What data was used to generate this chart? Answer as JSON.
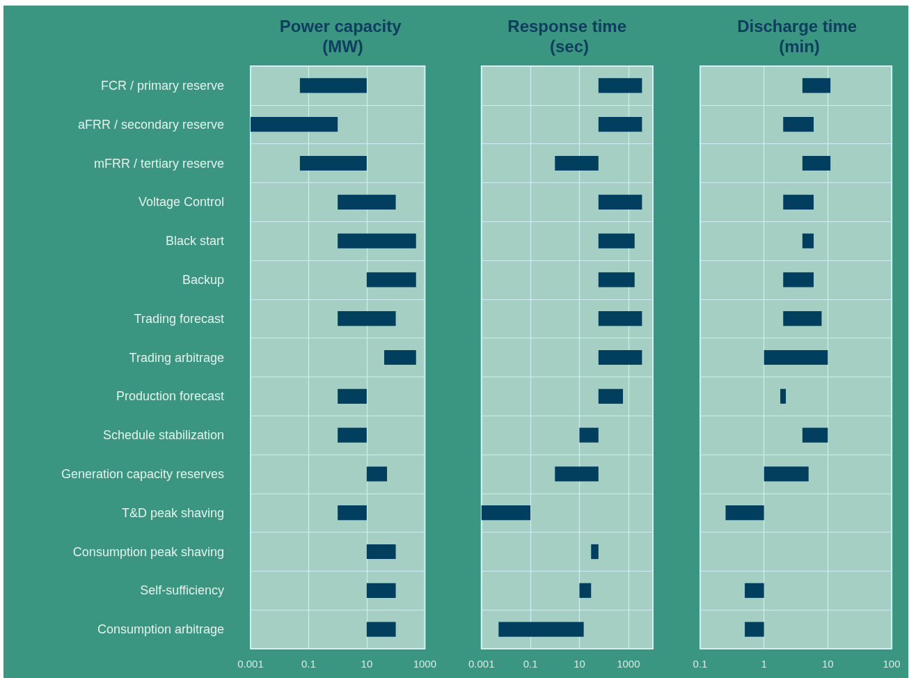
{
  "chart_data": [
    {
      "type": "bar",
      "orientation": "horizontal",
      "title": "Power capacity (MW)",
      "log": "x",
      "grid": true,
      "color": "#023f5e",
      "categories": [
        "FCR / primary reserve",
        "aFRR / secondary reserve",
        "mFRR / tertiary reserve",
        "Voltage Control",
        "Black start",
        "Backup",
        "Trading forecast",
        "Trading arbitrage",
        "Production forecast",
        "Schedule stabilization",
        "Generation capacity reserves",
        "T&D peak shaving",
        "Consumption peak shaving",
        "Self-sufficiency",
        "Consumption arbitrage"
      ],
      "base": [
        0.05,
        0.001,
        0.05,
        1,
        1,
        10,
        1,
        40,
        1,
        1,
        10,
        1,
        10,
        10,
        10
      ],
      "values": [
        9.95,
        0.999,
        9.95,
        99,
        499,
        490,
        99,
        460,
        9,
        9,
        40,
        9,
        90,
        90,
        90
      ],
      "xlim": [
        0.001,
        1000
      ],
      "xticks": [
        0.001,
        0.1,
        10,
        1000
      ]
    },
    {
      "type": "bar",
      "orientation": "horizontal",
      "title": "Response time (sec)",
      "log": "x",
      "grid": true,
      "color": "#023f5e",
      "tick_labels": "x",
      "categories": [
        null,
        null,
        null,
        null,
        null,
        null,
        null,
        null,
        null,
        null,
        null,
        null,
        null,
        null,
        null
      ],
      "base": [
        60,
        60,
        1,
        60,
        60,
        60,
        60,
        60,
        60,
        10,
        1,
        0.001,
        30,
        10,
        0.005
      ],
      "values": [
        3540,
        3540,
        59,
        3540,
        1740,
        1740,
        3540,
        3540,
        540,
        50,
        59,
        0.099,
        30,
        20,
        14.995
      ],
      "xlim": [
        0.001,
        10000
      ],
      "xticks": [
        0.001,
        0.1,
        10,
        1000
      ]
    },
    {
      "type": "bar",
      "orientation": "horizontal",
      "title": "Discharge time (min)",
      "log": "x",
      "grid": true,
      "color": "#023f5e",
      "tick_labels": "x",
      "categories": [
        null,
        null,
        null,
        null,
        null,
        null,
        null,
        null,
        null,
        null,
        null,
        null,
        null,
        null,
        null
      ],
      "base": [
        4,
        2,
        4,
        2,
        4,
        2,
        2,
        1,
        1.8,
        4,
        1,
        0.25,
        null,
        0.5,
        0.5
      ],
      "values": [
        7,
        4,
        7,
        4,
        2,
        4,
        6,
        9,
        0.4,
        6,
        4,
        0.75,
        null,
        0.5,
        0.5
      ],
      "xlim": [
        0.1,
        100
      ],
      "xticks": [
        0.1,
        1,
        10,
        100
      ]
    }
  ]
}
